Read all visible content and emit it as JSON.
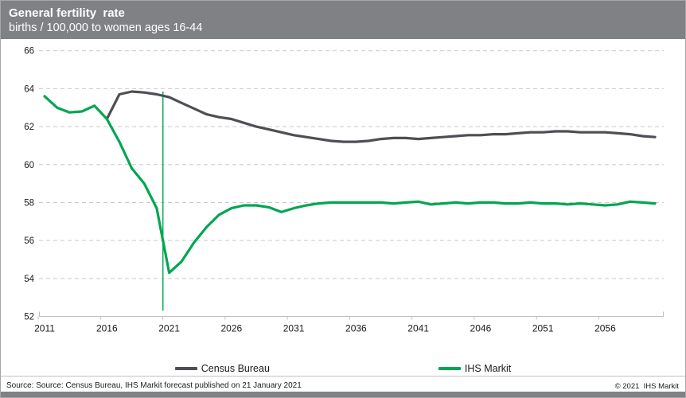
{
  "header": {
    "title": "General fertility  rate",
    "subtitle": "births / 100,000 to women ages 16-44"
  },
  "chart_data": {
    "type": "line",
    "title": "General fertility rate",
    "subtitle": "births / 100,000 to women ages 16-44",
    "ylim": [
      52,
      66
    ],
    "ytick_step": 2,
    "yticks": [
      52,
      54,
      56,
      58,
      60,
      62,
      64,
      66
    ],
    "xticks": [
      2011,
      2016,
      2021,
      2026,
      2031,
      2036,
      2041,
      2046,
      2051,
      2056
    ],
    "x_range_shown": [
      2011,
      2060
    ],
    "grid": "horizontal-dashed",
    "legend_position": "bottom",
    "forecast_marker_year": 2020.5,
    "series": [
      {
        "name": "Census Bureau",
        "color": "#4e4f54",
        "x": [
          2016,
          2017,
          2018,
          2019,
          2020,
          2021,
          2022,
          2023,
          2024,
          2025,
          2026,
          2027,
          2028,
          2029,
          2030,
          2031,
          2032,
          2033,
          2034,
          2035,
          2036,
          2037,
          2038,
          2039,
          2040,
          2041,
          2042,
          2043,
          2044,
          2045,
          2046,
          2047,
          2048,
          2049,
          2050,
          2051,
          2052,
          2053,
          2054,
          2055,
          2056,
          2057,
          2058,
          2059,
          2060
        ],
        "values": [
          62.4,
          63.7,
          63.85,
          63.8,
          63.7,
          63.55,
          63.25,
          62.95,
          62.65,
          62.5,
          62.4,
          62.2,
          62.0,
          61.85,
          61.7,
          61.55,
          61.45,
          61.35,
          61.25,
          61.2,
          61.2,
          61.25,
          61.35,
          61.4,
          61.4,
          61.35,
          61.4,
          61.45,
          61.5,
          61.55,
          61.55,
          61.6,
          61.6,
          61.65,
          61.7,
          61.7,
          61.75,
          61.75,
          61.7,
          61.7,
          61.7,
          61.65,
          61.6,
          61.5,
          61.45
        ]
      },
      {
        "name": "IHS Markit",
        "color": "#00a651",
        "x": [
          2011,
          2012,
          2013,
          2014,
          2015,
          2016,
          2017,
          2018,
          2019,
          2020,
          2021,
          2022,
          2023,
          2024,
          2025,
          2026,
          2027,
          2028,
          2029,
          2030,
          2031,
          2032,
          2033,
          2034,
          2035,
          2036,
          2037,
          2038,
          2039,
          2040,
          2041,
          2042,
          2043,
          2044,
          2045,
          2046,
          2047,
          2048,
          2049,
          2050,
          2051,
          2052,
          2053,
          2054,
          2055,
          2056,
          2057,
          2058,
          2059,
          2060
        ],
        "values": [
          63.6,
          63.0,
          62.75,
          62.8,
          63.1,
          62.4,
          61.2,
          59.8,
          59.0,
          57.7,
          54.3,
          54.9,
          55.9,
          56.7,
          57.35,
          57.7,
          57.85,
          57.85,
          57.75,
          57.5,
          57.7,
          57.85,
          57.95,
          58.0,
          58.0,
          58.0,
          58.0,
          58.0,
          57.95,
          58.0,
          58.05,
          57.9,
          57.95,
          58.0,
          57.95,
          58.0,
          58.0,
          57.95,
          57.95,
          58.0,
          57.95,
          57.95,
          57.9,
          57.95,
          57.9,
          57.85,
          57.9,
          58.05,
          58.0,
          57.95
        ]
      }
    ]
  },
  "legend": {
    "items": [
      {
        "label": "Census Bureau",
        "color": "#4e4f54"
      },
      {
        "label": "IHS Markit",
        "color": "#00a651"
      }
    ]
  },
  "footer": {
    "source": "Source: Source: Census Bureau, IHS Markit forecast published on 21 January 2021",
    "copyright": "© 2021  IHS Markit"
  },
  "colors": {
    "header_bg": "#808184",
    "header_text": "#ffffff",
    "census_line": "#4e4f54",
    "ihs_line": "#00a651",
    "forecast_marker": "#00a651",
    "gridline": "#c9c9c9",
    "axis": "#c0c0c0",
    "tick_label": "#1a1a1a",
    "bottom_bar": "#808184"
  }
}
